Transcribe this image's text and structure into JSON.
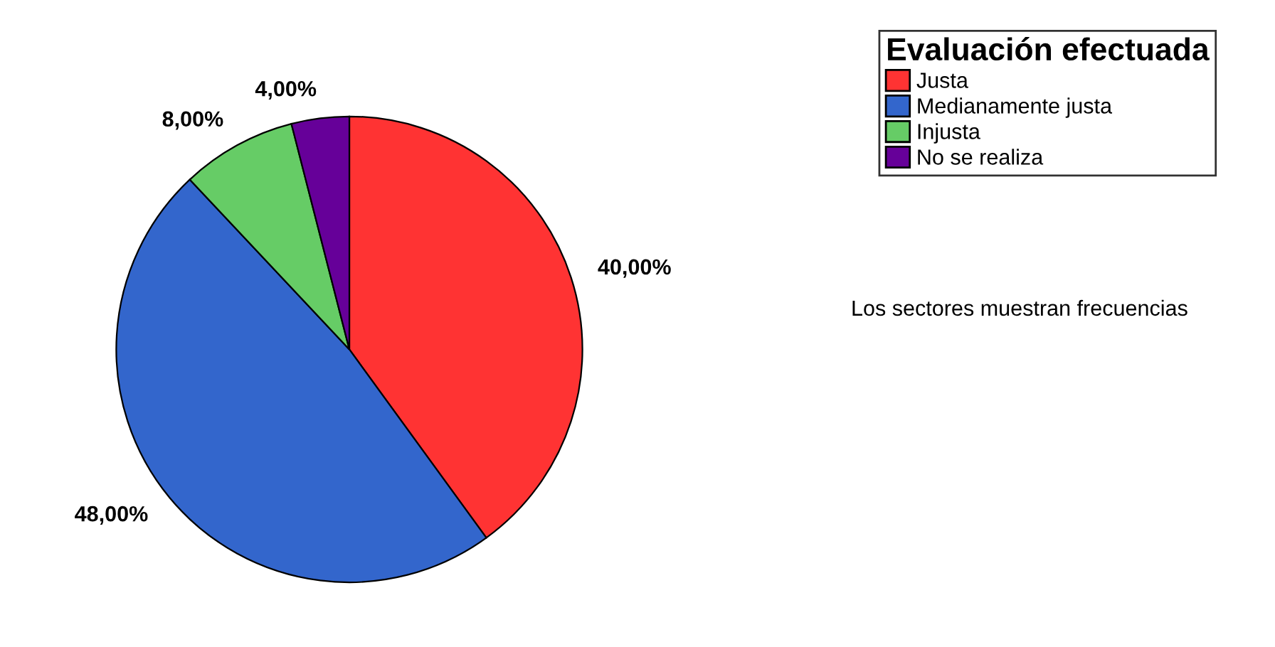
{
  "chart_data": {
    "type": "pie",
    "legend_title": "Evaluación efectuada",
    "categories": [
      "Justa",
      "Medianamente justa",
      "Injusta",
      "No se realiza"
    ],
    "values": [
      40,
      48,
      8,
      4
    ],
    "colors": [
      "#ff3333",
      "#3366cc",
      "#66cc66",
      "#660099"
    ],
    "value_labels": [
      "40,00%",
      "48,00%",
      "8,00%",
      "4,00%"
    ],
    "legend": "top right",
    "annotations": [
      "Los sectores muestran frecuencias"
    ]
  }
}
